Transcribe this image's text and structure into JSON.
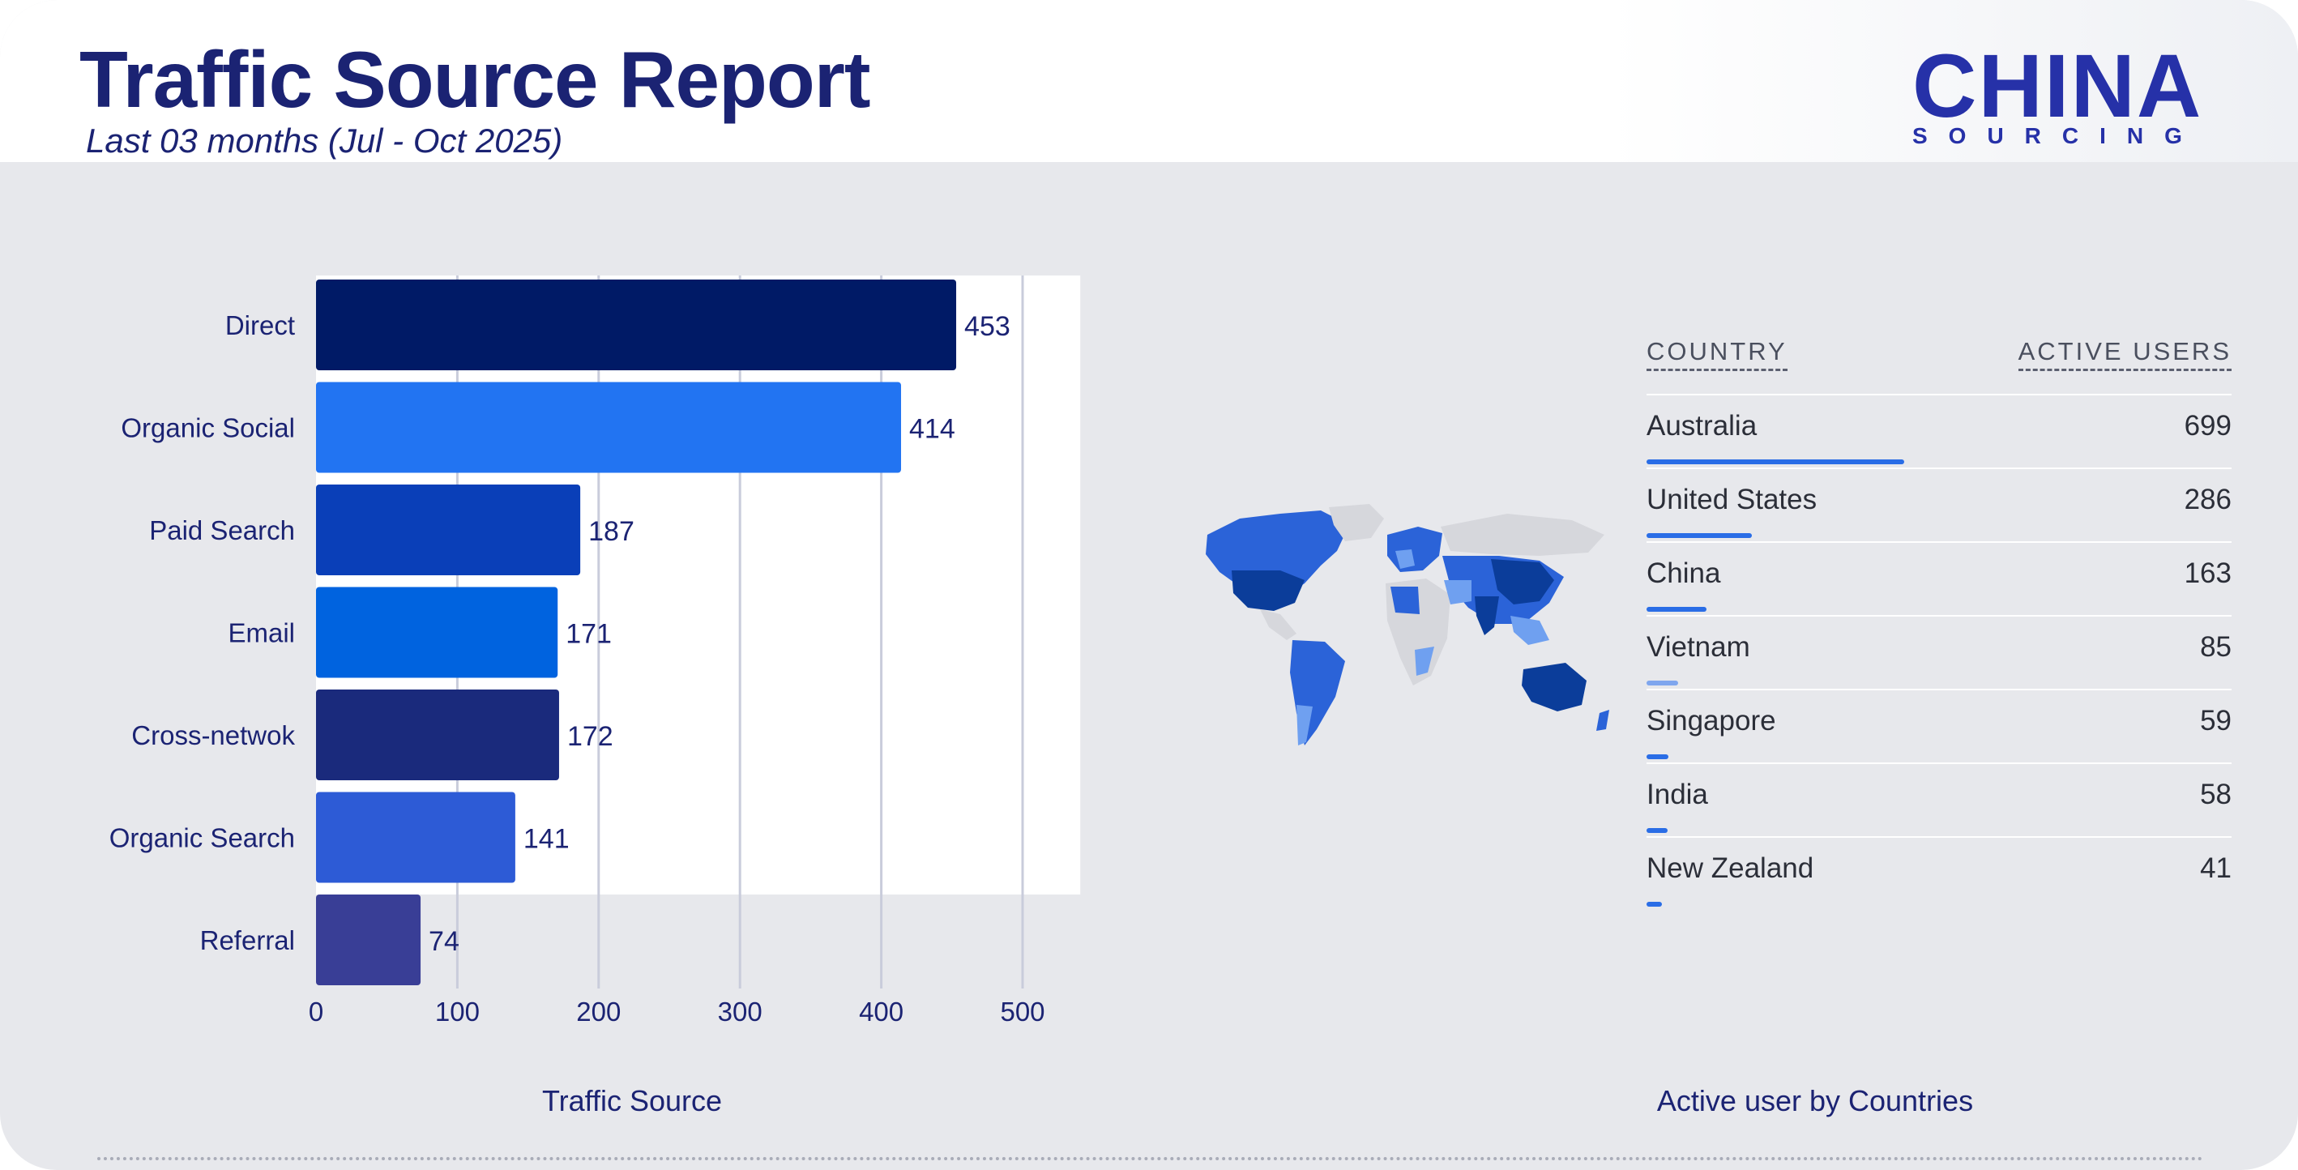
{
  "header": {
    "title": "Traffic Source Report",
    "subtitle": "Last 03 months (Jul - Oct 2025)"
  },
  "logo": {
    "main": "CHINA",
    "sub": "SOURCING"
  },
  "chart_data": [
    {
      "type": "bar",
      "orientation": "horizontal",
      "categories": [
        "Direct",
        "Organic Social",
        "Paid Search",
        "Email",
        "Cross-netwok",
        "Organic Search",
        "Referral"
      ],
      "values": [
        453,
        414,
        187,
        171,
        172,
        141,
        74
      ],
      "data_labels": [
        "453",
        "414",
        "187",
        "171",
        "172",
        "141",
        "74"
      ],
      "colors": [
        "#001a66",
        "#2274f2",
        "#0a3fb8",
        "#0063df",
        "#1a2a7c",
        "#2d5bd6",
        "#393e96"
      ],
      "xlim": [
        0,
        500
      ],
      "xticks": [
        0,
        100,
        200,
        300,
        400,
        500
      ],
      "tick_labels": [
        "0",
        "100",
        "200",
        "300",
        "400",
        "500"
      ],
      "grid": "vertical",
      "xlabel": "Traffic Source"
    },
    {
      "type": "table",
      "columns": [
        "COUNTRY",
        "ACTIVE USERS"
      ],
      "rows": [
        {
          "country": "Australia",
          "users": "699",
          "value": 699
        },
        {
          "country": "United States",
          "users": "286",
          "value": 286
        },
        {
          "country": "China",
          "users": "163",
          "value": 163
        },
        {
          "country": "Vietnam",
          "users": "85",
          "value": 85
        },
        {
          "country": "Singapore",
          "users": "59",
          "value": 59
        },
        {
          "country": "India",
          "users": "58",
          "value": 58
        },
        {
          "country": "New Zealand",
          "users": "41",
          "value": 41
        }
      ],
      "max_value": 699,
      "bar_color": "#2a6de6",
      "caption": "Active user by Countries"
    }
  ],
  "map": {
    "icon": "world-map-icon",
    "highlight_dark": "#0b3d9a",
    "highlight_mid": "#2b63d8",
    "highlight_light": "#6fa0f0",
    "base_gray": "#d6d7dc"
  }
}
